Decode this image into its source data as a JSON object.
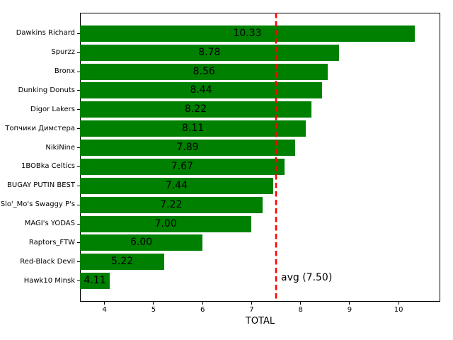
{
  "figure": {
    "background_color": "#ffffff",
    "bar_color": "#008000",
    "text_color": "#000000",
    "axis_color": "#000000"
  },
  "chart_data": {
    "type": "bar",
    "orientation": "horizontal",
    "title": "",
    "xlabel": "TOTAL",
    "ylabel": "",
    "categories": [
      "Dawkins Richard",
      "Spurzz",
      "Bronx",
      "Dunking Donuts",
      "Digor Lakers",
      "Топчики Димстера",
      "NikiNine",
      "1BOBka Celtics",
      "BUGAY PUTIN BEST",
      "Slo'_Mo's Swaggy P's",
      "MAGI's YODAS",
      "Raptors_FTW",
      "Red-Black Devil",
      "Hawk10 Minsk"
    ],
    "values": [
      10.33,
      8.78,
      8.56,
      8.44,
      8.22,
      8.11,
      7.89,
      7.67,
      7.44,
      7.22,
      7.0,
      6.0,
      5.22,
      4.11
    ],
    "value_labels": [
      "10.33",
      "8.78",
      "8.56",
      "8.44",
      "8.22",
      "8.11",
      "7.89",
      "7.67",
      "7.44",
      "7.22",
      "7.00",
      "6.00",
      "5.22",
      "4.11"
    ],
    "xlim": [
      3.5,
      10.85
    ],
    "x_ticks": [
      "4",
      "5",
      "6",
      "7",
      "8",
      "9",
      "10"
    ],
    "grid": false,
    "legend": null,
    "avg_line": {
      "value": 7.5,
      "label": "avg (7.50)",
      "color": "#ff0000",
      "style": "dashed"
    }
  }
}
